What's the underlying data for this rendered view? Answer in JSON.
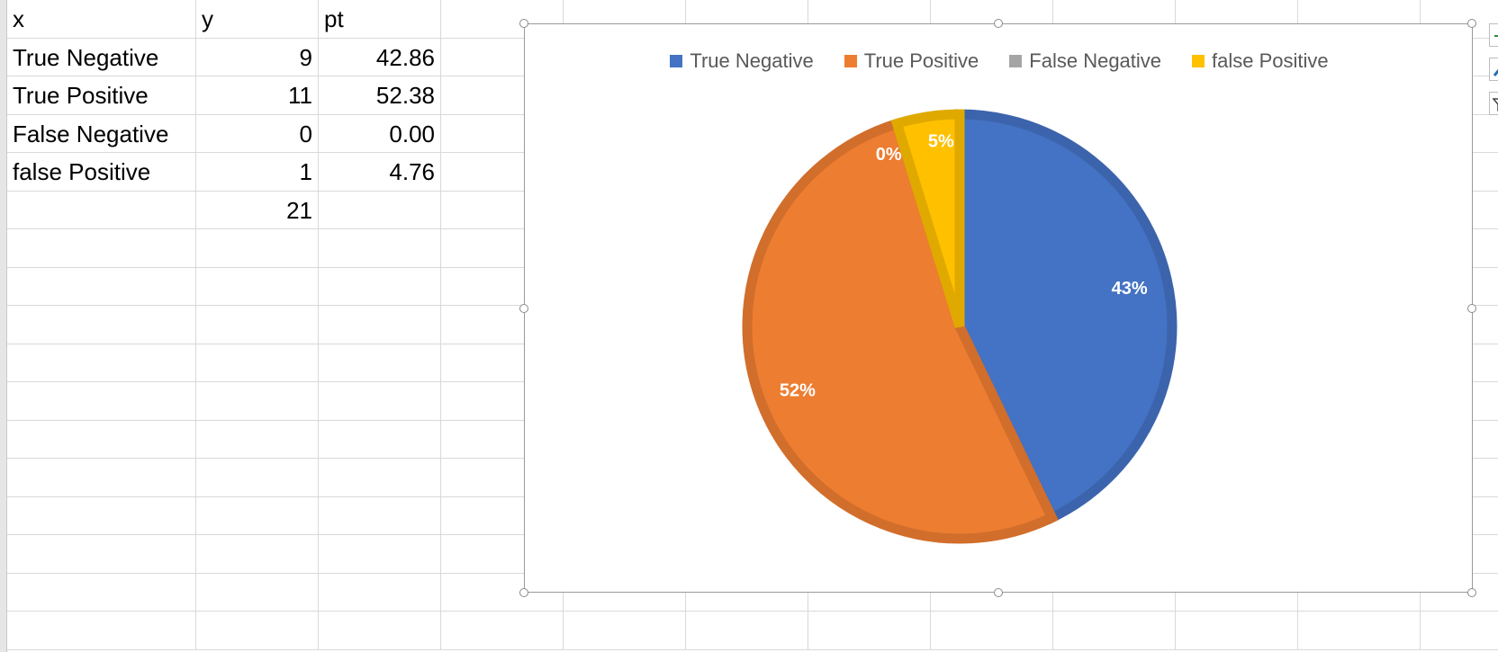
{
  "sheet": {
    "headers": [
      "x",
      "y",
      "pt"
    ],
    "rows": [
      {
        "x": "True Negative",
        "y": "9",
        "pt": "42.86"
      },
      {
        "x": "True Positive",
        "y": "11",
        "pt": "52.38"
      },
      {
        "x": "False Negative",
        "y": "0",
        "pt": "0.00"
      },
      {
        "x": "false Positive",
        "y": "1",
        "pt": "4.76"
      }
    ],
    "total": "21"
  },
  "chart_data": {
    "type": "pie",
    "categories": [
      "True Negative",
      "True Positive",
      "False Negative",
      "false Positive"
    ],
    "values": [
      9,
      11,
      0,
      1
    ],
    "data_labels": [
      "43%",
      "52%",
      "0%",
      "5%"
    ],
    "colors": [
      "#4472C4",
      "#ED7D31",
      "#A5A5A5",
      "#FFC000"
    ],
    "legend_position": "top"
  },
  "toolbar": {
    "icons": [
      "chart-elements-icon",
      "chart-styles-icon",
      "chart-filters-icon"
    ]
  }
}
